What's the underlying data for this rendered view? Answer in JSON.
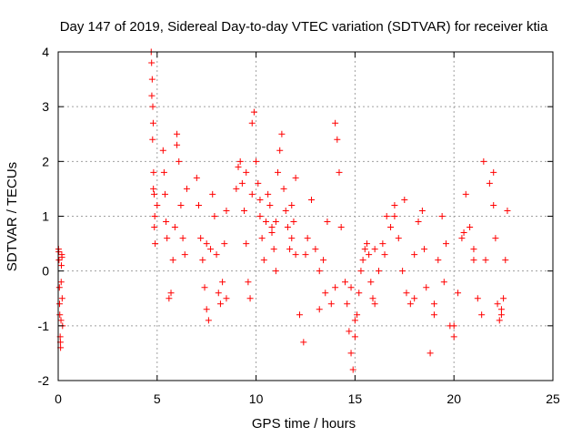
{
  "chart_data": {
    "type": "scatter",
    "title": "Day 147 of 2019, Sidereal Day-to-day VTEC variation (SDTVAR) for receiver ktia",
    "xlabel": "GPS time / hours",
    "ylabel": "SDTVAR / TECUs",
    "xlim": [
      0,
      25
    ],
    "ylim": [
      -2,
      4
    ],
    "xticks": [
      "0",
      "5",
      "10",
      "15",
      "20",
      "25"
    ],
    "yticks": [
      "-2",
      "-1",
      "0",
      "1",
      "2",
      "3",
      "4"
    ],
    "grid": true,
    "marker": "+",
    "color": "#ff0000",
    "series": [
      {
        "name": "SDTVAR",
        "x": [
          0.02,
          0.04,
          0.06,
          0.08,
          0.1,
          0.12,
          0.14,
          0.16,
          0.18,
          0.2,
          0.22,
          0.03,
          0.07,
          0.11,
          0.15,
          0.19,
          4.7,
          4.72,
          4.75,
          4.78,
          4.8,
          4.82,
          4.85,
          4.88,
          4.9,
          4.73,
          4.77,
          4.81,
          4.86,
          5.3,
          5.35,
          5.4,
          5.45,
          5.5,
          5.6,
          5.7,
          5.8,
          5.9,
          6.0,
          6.1,
          6.2,
          6.3,
          6.4,
          6.5,
          7.0,
          7.1,
          7.2,
          7.3,
          7.4,
          7.5,
          7.6,
          7.7,
          7.8,
          7.9,
          8.0,
          8.1,
          8.2,
          8.3,
          8.4,
          8.5,
          9.0,
          9.1,
          9.2,
          9.3,
          9.4,
          9.5,
          9.6,
          9.7,
          9.8,
          9.9,
          10.0,
          10.1,
          10.2,
          10.3,
          10.4,
          10.5,
          10.6,
          10.7,
          10.8,
          10.9,
          11.0,
          11.1,
          11.2,
          11.3,
          11.4,
          11.5,
          11.6,
          11.7,
          11.8,
          11.9,
          12.0,
          12.2,
          12.4,
          12.6,
          12.8,
          13.0,
          13.2,
          13.4,
          13.6,
          13.8,
          14.0,
          14.1,
          14.2,
          14.3,
          14.5,
          14.6,
          14.7,
          14.8,
          14.9,
          15.0,
          15.1,
          15.2,
          15.3,
          15.4,
          15.5,
          15.6,
          15.7,
          15.8,
          15.9,
          16.0,
          16.2,
          16.4,
          16.6,
          16.8,
          17.0,
          17.2,
          17.4,
          17.6,
          17.8,
          18.0,
          18.2,
          18.4,
          18.6,
          18.8,
          19.0,
          19.2,
          19.4,
          19.6,
          19.8,
          20.0,
          20.2,
          20.4,
          20.6,
          20.8,
          21.0,
          21.2,
          21.4,
          21.6,
          21.8,
          22.0,
          22.1,
          22.2,
          22.3,
          22.4,
          22.5,
          22.6,
          22.7,
          9.5,
          10.2,
          11.0,
          11.8,
          12.5,
          13.2,
          14.0,
          15.0,
          16.5,
          17.5,
          18.5,
          19.5,
          20.5,
          21.5,
          22.4,
          5.0,
          6.0,
          7.5,
          8.5,
          9.8,
          10.8,
          12.0,
          13.5,
          14.8,
          16.0,
          17.0,
          18.0,
          19.0,
          20.0,
          21.0,
          22.0
        ],
        "values": [
          0.4,
          0.2,
          -0.3,
          -0.8,
          -1.2,
          -1.4,
          -0.9,
          0.1,
          0.3,
          -0.5,
          -1.0,
          0.35,
          -0.6,
          -1.3,
          -0.2,
          0.25,
          4.0,
          3.8,
          3.5,
          3.0,
          2.7,
          1.8,
          1.4,
          1.0,
          0.5,
          3.2,
          2.4,
          1.5,
          0.8,
          2.2,
          1.8,
          1.4,
          0.9,
          0.6,
          -0.5,
          -0.4,
          0.2,
          0.8,
          2.5,
          2.0,
          1.2,
          0.6,
          0.3,
          1.5,
          1.7,
          1.2,
          0.6,
          0.2,
          -0.3,
          -0.7,
          -0.9,
          0.4,
          1.4,
          1.0,
          0.3,
          -0.4,
          -0.6,
          -0.2,
          0.5,
          1.1,
          1.5,
          1.9,
          2.0,
          1.6,
          1.1,
          0.5,
          -0.2,
          -0.5,
          2.7,
          2.9,
          2.0,
          1.6,
          1.0,
          0.6,
          0.2,
          0.9,
          1.4,
          1.2,
          0.8,
          0.4,
          0.0,
          1.8,
          2.2,
          2.5,
          1.5,
          1.1,
          0.8,
          0.4,
          1.2,
          0.9,
          0.3,
          -0.8,
          -1.3,
          0.6,
          1.3,
          0.4,
          -0.7,
          0.2,
          0.9,
          -0.6,
          2.7,
          2.4,
          1.8,
          0.8,
          -0.2,
          -0.6,
          -1.1,
          -1.5,
          -1.8,
          -1.2,
          -0.8,
          -0.4,
          0.0,
          0.2,
          0.4,
          0.5,
          0.3,
          -0.2,
          -0.5,
          -0.6,
          0.0,
          0.5,
          1.0,
          0.8,
          1.2,
          0.6,
          0.0,
          -0.4,
          -0.6,
          0.3,
          0.9,
          1.1,
          -0.3,
          -1.5,
          -0.8,
          0.2,
          1.0,
          0.5,
          -1.0,
          -1.2,
          -0.4,
          0.6,
          1.4,
          0.8,
          0.4,
          -0.5,
          -0.8,
          0.2,
          1.6,
          1.2,
          0.6,
          -0.6,
          -0.9,
          -0.8,
          -0.5,
          0.2,
          1.1,
          1.8,
          1.3,
          0.9,
          0.6,
          0.3,
          0.0,
          -0.3,
          -0.9,
          0.3,
          1.3,
          0.4,
          -0.2,
          0.7,
          2.0,
          -0.7,
          1.2,
          2.3,
          0.5,
          -0.5,
          1.4,
          0.7,
          1.7,
          -0.4,
          -0.3,
          0.4,
          1.0,
          -0.5,
          -0.6,
          -1.0,
          0.2,
          1.8
        ]
      }
    ]
  }
}
